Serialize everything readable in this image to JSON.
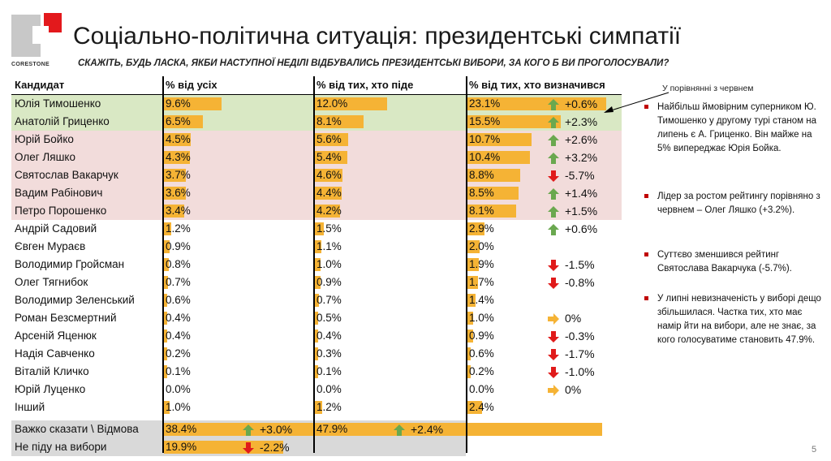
{
  "logo": {
    "text": "CORESTONE"
  },
  "title": "Соціально-політична ситуація: президентські симпатії",
  "subtitle": "СКАЖІТЬ, БУДЬ ЛАСКА, ЯКБИ НАСТУПНОЇ НЕДІЛІ ВІДБУВАЛИСЬ ПРЕЗИДЕНТСЬКІ ВИБОРИ, ЗА КОГО Б ВИ ПРОГОЛОСУВАЛИ?",
  "colors": {
    "bar": "#f5b335",
    "top_group": "#d9e8c4",
    "second_group": "#f2dcdb",
    "bottom_group": "#d9d9d9",
    "up_arrow": "#6aa84f",
    "down_arrow": "#e01a1a",
    "flat_arrow": "#f5b335"
  },
  "table": {
    "headers": [
      "Кандидат",
      "% від усіх",
      "% від тих, хто піде",
      "% від тих, хто визначився"
    ],
    "rows": [
      {
        "name": "Юлія Тимошенко",
        "all": 9.6,
        "all_label": "9.6%",
        "going": 12.0,
        "going_label": "12.0%",
        "decided": 23.1,
        "decided_label": "23.1%",
        "change": "+0.6%",
        "dir": "up",
        "group": "top"
      },
      {
        "name": "Анатолій Гриценко",
        "all": 6.5,
        "all_label": "6.5%",
        "going": 8.1,
        "going_label": "8.1%",
        "decided": 15.5,
        "decided_label": "15.5%",
        "change": "+2.3%",
        "dir": "up",
        "group": "top"
      },
      {
        "name": "Юрій Бойко",
        "all": 4.5,
        "all_label": "4.5%",
        "going": 5.6,
        "going_label": "5.6%",
        "decided": 10.7,
        "decided_label": "10.7%",
        "change": "+2.6%",
        "dir": "up",
        "group": "second"
      },
      {
        "name": "Олег Ляшко",
        "all": 4.3,
        "all_label": "4.3%",
        "going": 5.4,
        "going_label": "5.4%",
        "decided": 10.4,
        "decided_label": "10.4%",
        "change": "+3.2%",
        "dir": "up",
        "group": "second"
      },
      {
        "name": "Святослав Вакарчук",
        "all": 3.7,
        "all_label": "3.7%",
        "going": 4.6,
        "going_label": "4.6%",
        "decided": 8.8,
        "decided_label": "8.8%",
        "change": "-5.7%",
        "dir": "down",
        "group": "second"
      },
      {
        "name": "Вадим Рабінович",
        "all": 3.6,
        "all_label": "3.6%",
        "going": 4.4,
        "going_label": "4.4%",
        "decided": 8.5,
        "decided_label": "8.5%",
        "change": "+1.4%",
        "dir": "up",
        "group": "second"
      },
      {
        "name": "Петро Порошенко",
        "all": 3.4,
        "all_label": "3.4%",
        "going": 4.2,
        "going_label": "4.2%",
        "decided": 8.1,
        "decided_label": "8.1%",
        "change": "+1.5%",
        "dir": "up",
        "group": "second"
      },
      {
        "name": "Андрій Садовий",
        "all": 1.2,
        "all_label": "1.2%",
        "going": 1.5,
        "going_label": "1.5%",
        "decided": 2.9,
        "decided_label": "2.9%",
        "change": "+0.6%",
        "dir": "up",
        "group": "none"
      },
      {
        "name": "Євген Мураєв",
        "all": 0.9,
        "all_label": "0.9%",
        "going": 1.1,
        "going_label": "1.1%",
        "decided": 2.0,
        "decided_label": "2.0%",
        "change": "",
        "dir": "",
        "group": "none"
      },
      {
        "name": "Володимир Гройсман",
        "all": 0.8,
        "all_label": "0.8%",
        "going": 1.0,
        "going_label": "1.0%",
        "decided": 1.9,
        "decided_label": "1.9%",
        "change": "-1.5%",
        "dir": "down",
        "group": "none"
      },
      {
        "name": "Олег Тягнибок",
        "all": 0.7,
        "all_label": "0.7%",
        "going": 0.9,
        "going_label": "0.9%",
        "decided": 1.7,
        "decided_label": "1.7%",
        "change": "-0.8%",
        "dir": "down",
        "group": "none"
      },
      {
        "name": "Володимир Зеленський",
        "all": 0.6,
        "all_label": "0.6%",
        "going": 0.7,
        "going_label": "0.7%",
        "decided": 1.4,
        "decided_label": "1.4%",
        "change": "",
        "dir": "",
        "group": "none"
      },
      {
        "name": "Роман Безсмертний",
        "all": 0.4,
        "all_label": "0.4%",
        "going": 0.5,
        "going_label": "0.5%",
        "decided": 1.0,
        "decided_label": "1.0%",
        "change": "0%",
        "dir": "flat",
        "group": "none"
      },
      {
        "name": "Арсеній Яценюк",
        "all": 0.4,
        "all_label": "0.4%",
        "going": 0.4,
        "going_label": "0.4%",
        "decided": 0.9,
        "decided_label": "0.9%",
        "change": "-0.3%",
        "dir": "down",
        "group": "none"
      },
      {
        "name": "Надія Савченко",
        "all": 0.2,
        "all_label": "0.2%",
        "going": 0.3,
        "going_label": "0.3%",
        "decided": 0.6,
        "decided_label": "0.6%",
        "change": "-1.7%",
        "dir": "down",
        "group": "none"
      },
      {
        "name": "Віталій Кличко",
        "all": 0.1,
        "all_label": "0.1%",
        "going": 0.1,
        "going_label": "0.1%",
        "decided": 0.2,
        "decided_label": "0.2%",
        "change": "-1.0%",
        "dir": "down",
        "group": "none"
      },
      {
        "name": "Юрій Луценко",
        "all": 0.0,
        "all_label": "0.0%",
        "going": 0.0,
        "going_label": "0.0%",
        "decided": 0.0,
        "decided_label": "0.0%",
        "change": "0%",
        "dir": "flat",
        "group": "none"
      },
      {
        "name": "Інший",
        "all": 1.0,
        "all_label": "1.0%",
        "going": 1.2,
        "going_label": "1.2%",
        "decided": 2.4,
        "decided_label": "2.4%",
        "change": "",
        "dir": "",
        "group": "none"
      },
      {
        "name": "Важко сказати \\ Відмова",
        "all": 38.4,
        "all_label": "38.4%",
        "all_change": "+3.0%",
        "all_dir": "up",
        "going": 47.9,
        "going_label": "47.9%",
        "going_change": "+2.4%",
        "going_dir": "up",
        "decided": null,
        "decided_label": "",
        "change": "",
        "dir": "",
        "group": "bottom"
      },
      {
        "name": "Не піду на вибори",
        "all": 19.9,
        "all_label": "19.9%",
        "all_change": "-2.2%",
        "all_dir": "down",
        "going": null,
        "going_label": "",
        "decided": null,
        "decided_label": "",
        "change": "",
        "dir": "",
        "group": "bottom"
      }
    ]
  },
  "side": {
    "note_label": "У порівнянні з червнем",
    "bullets": [
      "Найбільш ймовірним суперником Ю. Тимошенко у другому турі станом на липень є А. Гриценко. Він майже на 5% випереджає Юрія Бойка.",
      "Лідер за ростом рейтингу порівняно з червнем – Олег Ляшко (+3.2%).",
      "Суттєво зменшився рейтинг Святослава Вакарчука (-5.7%).",
      "У липні невизначеність у виборі дещо збільшилася. Частка тих, хто має намір йти на вибори, але не знає, за кого голосуватиме становить 47.9%."
    ]
  },
  "page_number": "5"
}
